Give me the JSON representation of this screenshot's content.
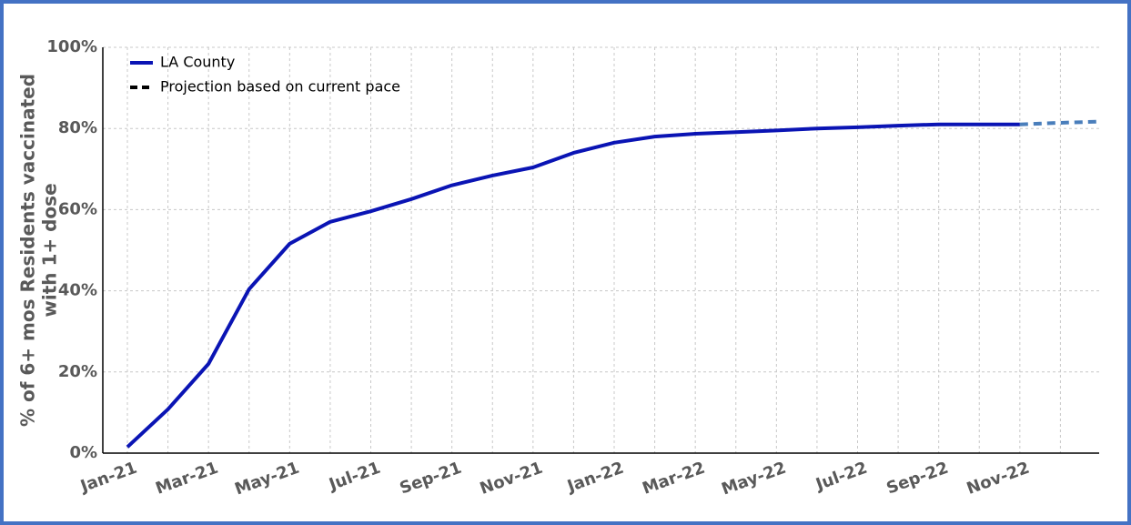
{
  "chart_data": {
    "type": "line",
    "y_label": [
      "% of 6+ mos Residents vaccinated",
      "with 1+ dose"
    ],
    "x": [
      "2021-01",
      "2021-02",
      "2021-03",
      "2021-04",
      "2021-05",
      "2021-06",
      "2021-07",
      "2021-08",
      "2021-09",
      "2021-10",
      "2021-11",
      "2021-12",
      "2022-01",
      "2022-02",
      "2022-03",
      "2022-04",
      "2022-05",
      "2022-06",
      "2022-07",
      "2022-08",
      "2022-09",
      "2022-10",
      "2022-11",
      "2022-12",
      "2023-01"
    ],
    "series": [
      {
        "name": "LA County",
        "color": "#0a14b4",
        "dash": false,
        "values": [
          1.5,
          10.8,
          22,
          40.4,
          51.6,
          57,
          59.6,
          62.6,
          66,
          68.4,
          70.4,
          74,
          76.5,
          78,
          78.7,
          79.1,
          79.5,
          80,
          80.3,
          80.7,
          81,
          81,
          81,
          null,
          null
        ]
      },
      {
        "name": "Projection based on current pace",
        "color": "#4a7ebb",
        "dash": true,
        "values": [
          null,
          null,
          null,
          null,
          null,
          null,
          null,
          null,
          null,
          null,
          null,
          null,
          null,
          null,
          null,
          null,
          null,
          null,
          null,
          null,
          null,
          null,
          81,
          81.4,
          81.7
        ]
      }
    ],
    "xlim": [
      "2021-01",
      "2023-01"
    ],
    "xticks": [
      {
        "value": "2021-01",
        "label": "Jan-21"
      },
      {
        "value": "2021-03",
        "label": "Mar-21"
      },
      {
        "value": "2021-05",
        "label": "May-21"
      },
      {
        "value": "2021-07",
        "label": "Jul-21"
      },
      {
        "value": "2021-09",
        "label": "Sep-21"
      },
      {
        "value": "2021-11",
        "label": "Nov-21"
      },
      {
        "value": "2022-01",
        "label": "Jan-22"
      },
      {
        "value": "2022-03",
        "label": "Mar-22"
      },
      {
        "value": "2022-05",
        "label": "May-22"
      },
      {
        "value": "2022-07",
        "label": "Jul-22"
      },
      {
        "value": "2022-09",
        "label": "Sep-22"
      },
      {
        "value": "2022-11",
        "label": "Nov-22"
      }
    ],
    "ylim": [
      0,
      100
    ],
    "yticks": [
      {
        "value": 0,
        "label": "0%"
      },
      {
        "value": 20,
        "label": "20%"
      },
      {
        "value": 40,
        "label": "40%"
      },
      {
        "value": 60,
        "label": "60%"
      },
      {
        "value": 80,
        "label": "80%"
      },
      {
        "value": 100,
        "label": "100%"
      }
    ],
    "grid": true,
    "legend": "top-left"
  }
}
